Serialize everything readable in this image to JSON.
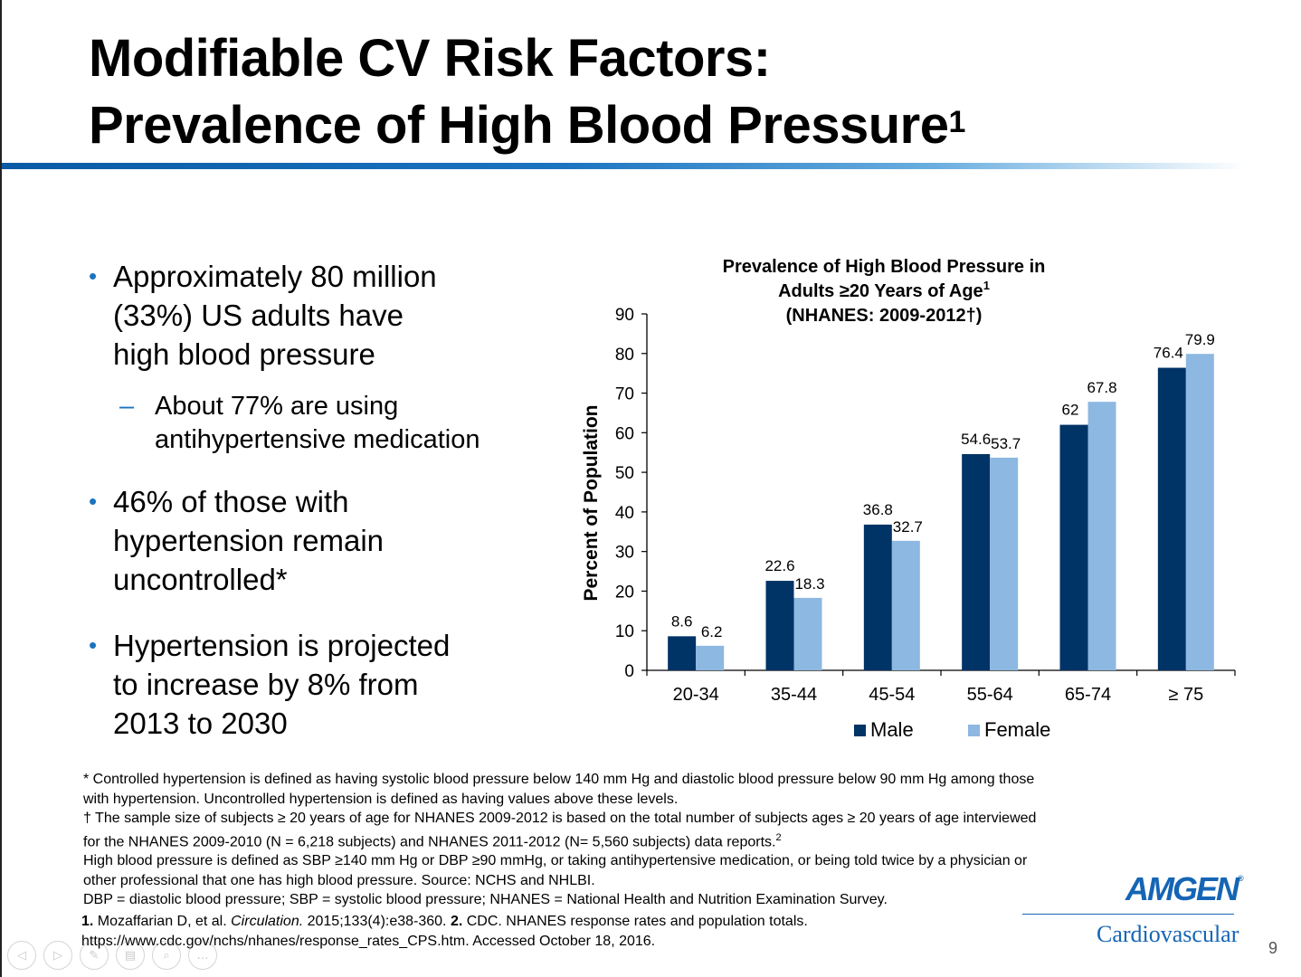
{
  "slide": {
    "title_line1": "Modifiable CV Risk Factors:",
    "title_line2": "Prevalence of High Blood Pressure",
    "title_sup": "1",
    "page_number": "9"
  },
  "bullets": [
    {
      "text": "Approximately 80 million\n(33%) US adults have\nhigh blood pressure",
      "sub": "About 77% are using\nantihypertensive medication"
    },
    {
      "text": "46% of those with\nhypertension remain\nuncontrolled*"
    },
    {
      "text": "Hypertension is projected\nto increase by 8% from\n2013 to 2030"
    }
  ],
  "chart_data": {
    "type": "bar",
    "title_lines": [
      "Prevalence of High Blood Pressure in",
      "Adults ≥20 Years of Age",
      "(NHANES: 2009-2012†)"
    ],
    "title_sup": "1",
    "ylabel": "Percent of Population",
    "xlabel": "",
    "ylim": [
      0,
      90
    ],
    "yticks": [
      0,
      10,
      20,
      30,
      40,
      50,
      60,
      70,
      80,
      90
    ],
    "categories": [
      "20-34",
      "35-44",
      "45-54",
      "55-64",
      "65-74",
      "≥ 75"
    ],
    "series": [
      {
        "name": "Male",
        "color": "#003366",
        "values": [
          8.6,
          22.6,
          36.8,
          54.6,
          62,
          76.4
        ]
      },
      {
        "name": "Female",
        "color": "#8cb8e2",
        "values": [
          6.2,
          18.3,
          32.7,
          53.7,
          67.8,
          79.9
        ]
      }
    ],
    "legend": "bottom",
    "grid": false
  },
  "footnotes": [
    "* Controlled hypertension is defined as having systolic blood pressure below 140 mm Hg and diastolic blood pressure below 90 mm Hg among those with hypertension. Uncontrolled hypertension is defined as having values above these levels.",
    "† The sample size of subjects ≥ 20 years of age for NHANES 2009-2012 is based on the total number of subjects ages ≥ 20 years of age interviewed for the NHANES 2009-2010 (N = 6,218 subjects) and NHANES 2011-2012 (N= 5,560 subjects) data reports.",
    "High blood pressure is defined as SBP ≥140 mm Hg or DBP ≥90 mmHg, or taking antihypertensive medication, or being told twice by a physician or other professional that one has high blood pressure. Source: NCHS and NHLBI.",
    "DBP = diastolic blood pressure; SBP = systolic blood pressure; NHANES = National Health and Nutrition Examination Survey."
  ],
  "footnote2_sup": "2",
  "refs": {
    "ref1_num": "1.",
    "ref1_author": " Mozaffarian D, et al. ",
    "ref1_journal": "Circulation.",
    "ref1_rest": " 2015;133(4):e38-360. ",
    "ref2_num": "2.",
    "ref2_text": " CDC. NHANES response rates and population totals.",
    "ref2_url": "https://www.cdc.gov/nchs/nhanes/response_rates_CPS.htm. Accessed October 18, 2016."
  },
  "logo": {
    "brand": "AMGEN",
    "registered": "®",
    "subtitle": "Cardiovascular"
  },
  "nav": {
    "icons": [
      "back-icon",
      "forward-icon",
      "pen-icon",
      "slides-icon",
      "zoom-icon",
      "more-icon"
    ],
    "glyphs": [
      "◁",
      "▷",
      "✎",
      "▤",
      "⌕",
      "…"
    ]
  }
}
